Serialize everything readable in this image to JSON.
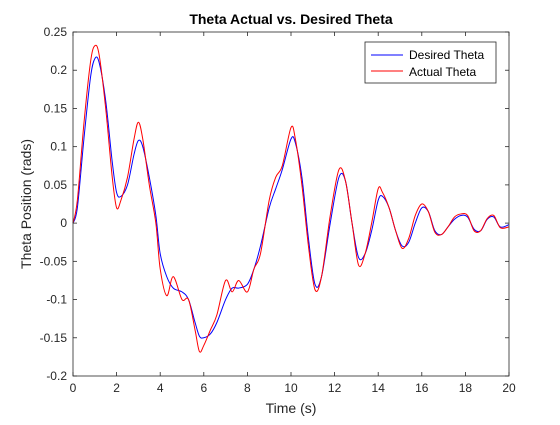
{
  "chart_data": {
    "type": "line",
    "title": "Theta Actual vs. Desired Theta",
    "xlabel": "Time (s)",
    "ylabel": "Theta Position (rads)",
    "xlim": [
      0,
      20
    ],
    "ylim": [
      -0.2,
      0.25
    ],
    "xticks": [
      0,
      2,
      4,
      6,
      8,
      10,
      12,
      14,
      16,
      18,
      20
    ],
    "yticks": [
      -0.2,
      -0.15,
      -0.1,
      -0.05,
      0,
      0.05,
      0.1,
      0.15,
      0.2,
      0.25
    ],
    "xtick_labels": [
      "0",
      "2",
      "4",
      "6",
      "8",
      "10",
      "12",
      "14",
      "16",
      "18",
      "20"
    ],
    "ytick_labels": [
      "-0.2",
      "-0.15",
      "-0.1",
      "-0.05",
      "0",
      "0.05",
      "0.1",
      "0.15",
      "0.2",
      "0.25"
    ],
    "grid": false,
    "legend_location": "top-right",
    "series": [
      {
        "name": "Desired Theta",
        "color": "#0000ff",
        "x": [
          0,
          0.2,
          0.5,
          0.8,
          1.0,
          1.2,
          1.5,
          1.8,
          2.0,
          2.2,
          2.5,
          2.8,
          3.0,
          3.2,
          3.5,
          3.8,
          4.0,
          4.3,
          4.6,
          5.0,
          5.3,
          5.6,
          5.8,
          6.0,
          6.3,
          6.6,
          7.0,
          7.3,
          7.6,
          8.0,
          8.3,
          8.6,
          9.0,
          9.3,
          9.6,
          10.0,
          10.2,
          10.5,
          10.8,
          11.1,
          11.4,
          11.8,
          12.2,
          12.5,
          12.8,
          13.1,
          13.4,
          13.7,
          14.0,
          14.2,
          14.5,
          14.8,
          15.1,
          15.4,
          15.7,
          16.0,
          16.3,
          16.6,
          16.9,
          17.2,
          17.5,
          17.8,
          18.1,
          18.4,
          18.7,
          19.0,
          19.3,
          19.6,
          20.0
        ],
        "y": [
          0,
          0.02,
          0.11,
          0.19,
          0.215,
          0.21,
          0.16,
          0.08,
          0.04,
          0.035,
          0.05,
          0.09,
          0.108,
          0.1,
          0.06,
          0.01,
          -0.04,
          -0.07,
          -0.085,
          -0.09,
          -0.1,
          -0.13,
          -0.148,
          -0.15,
          -0.145,
          -0.13,
          -0.1,
          -0.085,
          -0.085,
          -0.08,
          -0.06,
          -0.03,
          0.02,
          0.045,
          0.07,
          0.11,
          0.105,
          0.06,
          -0.02,
          -0.08,
          -0.07,
          0.0,
          0.06,
          0.055,
          0.0,
          -0.045,
          -0.04,
          -0.01,
          0.03,
          0.035,
          0.02,
          -0.01,
          -0.03,
          -0.025,
          0.0,
          0.02,
          0.015,
          -0.01,
          -0.015,
          -0.005,
          0.005,
          0.01,
          0.008,
          -0.008,
          -0.01,
          0.005,
          0.008,
          -0.005,
          -0.002
        ]
      },
      {
        "name": "Actual Theta",
        "color": "#ff0000",
        "x": [
          0,
          0.2,
          0.5,
          0.8,
          1.0,
          1.2,
          1.5,
          1.8,
          2.0,
          2.2,
          2.5,
          2.8,
          3.0,
          3.2,
          3.5,
          3.8,
          4.0,
          4.3,
          4.6,
          5.0,
          5.3,
          5.6,
          5.8,
          6.0,
          6.3,
          6.6,
          7.0,
          7.3,
          7.6,
          8.0,
          8.3,
          8.6,
          9.0,
          9.3,
          9.6,
          10.0,
          10.2,
          10.5,
          10.8,
          11.1,
          11.4,
          11.8,
          12.2,
          12.5,
          12.8,
          13.1,
          13.4,
          13.7,
          14.0,
          14.2,
          14.5,
          14.8,
          15.1,
          15.4,
          15.7,
          16.0,
          16.3,
          16.6,
          16.9,
          17.2,
          17.5,
          17.8,
          18.1,
          18.4,
          18.7,
          19.0,
          19.3,
          19.6,
          20.0
        ],
        "y": [
          0,
          0.03,
          0.13,
          0.21,
          0.232,
          0.22,
          0.15,
          0.06,
          0.02,
          0.03,
          0.06,
          0.11,
          0.132,
          0.11,
          0.05,
          0.0,
          -0.06,
          -0.095,
          -0.07,
          -0.1,
          -0.1,
          -0.14,
          -0.168,
          -0.16,
          -0.14,
          -0.12,
          -0.075,
          -0.09,
          -0.075,
          -0.09,
          -0.06,
          -0.04,
          0.03,
          0.06,
          0.075,
          0.125,
          0.11,
          0.05,
          -0.03,
          -0.087,
          -0.07,
          0.01,
          0.07,
          0.055,
          0.0,
          -0.055,
          -0.04,
          0.0,
          0.045,
          0.04,
          0.02,
          -0.01,
          -0.033,
          -0.02,
          0.01,
          0.025,
          0.015,
          -0.012,
          -0.015,
          -0.005,
          0.008,
          0.012,
          0.01,
          -0.01,
          -0.01,
          0.006,
          0.01,
          -0.006,
          -0.005
        ]
      }
    ]
  }
}
